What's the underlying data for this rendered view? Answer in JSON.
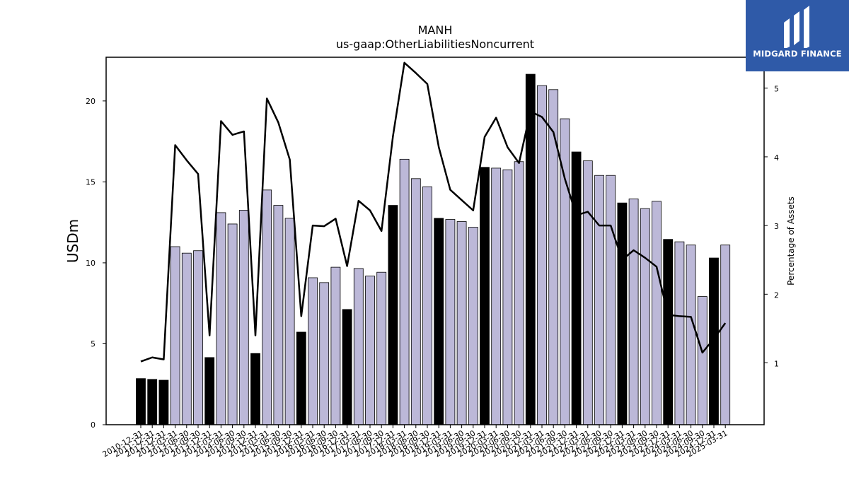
{
  "chart_data": {
    "type": "bar",
    "title": "MANH",
    "subtitle": "us-gaap:OtherLiabilitiesNoncurrent",
    "ylabel": "USDm",
    "ylabel_right": "Percentage of Assets",
    "ylim": [
      0,
      22.7
    ],
    "ylim_right": [
      0.1,
      5.45
    ],
    "yticks": [
      0,
      5,
      10,
      15,
      20
    ],
    "yticks_right": [
      1,
      2,
      3,
      4,
      5
    ],
    "bar_colors": {
      "annual": "#000000",
      "quarter": "#bcb8d8"
    },
    "line_color": "#000000",
    "categories": [
      "2010-12-31",
      "2011-12-31",
      "2012-12-31",
      "2013-03-31",
      "2013-06-30",
      "2013-09-30",
      "2013-12-31",
      "2014-03-31",
      "2014-06-30",
      "2014-09-30",
      "2014-12-31",
      "2015-03-31",
      "2015-06-30",
      "2015-09-30",
      "2015-12-31",
      "2016-03-31",
      "2016-06-30",
      "2016-09-30",
      "2016-12-31",
      "2017-03-31",
      "2017-06-30",
      "2017-09-30",
      "2017-12-31",
      "2018-03-31",
      "2018-06-30",
      "2018-09-30",
      "2018-12-31",
      "2019-03-31",
      "2019-06-30",
      "2019-09-30",
      "2019-12-31",
      "2020-03-31",
      "2020-06-30",
      "2020-09-30",
      "2020-12-31",
      "2021-03-31",
      "2021-06-30",
      "2021-09-30",
      "2021-12-31",
      "2022-03-31",
      "2022-06-30",
      "2022-09-30",
      "2022-12-31",
      "2023-03-31",
      "2023-06-30",
      "2023-09-30",
      "2023-12-31",
      "2024-03-31",
      "2024-06-30",
      "2024-09-30",
      "2024-12-31",
      "2025-03-31"
    ],
    "series": [
      {
        "type": "bar",
        "values": [
          2.85,
          2.8,
          2.75,
          11.0,
          10.6,
          10.75,
          4.15,
          13.1,
          12.4,
          13.25,
          4.4,
          14.5,
          13.55,
          12.75,
          5.72,
          9.08,
          8.78,
          9.73,
          7.12,
          9.65,
          9.18,
          9.42,
          13.55,
          16.4,
          15.2,
          14.7,
          12.75,
          12.68,
          12.55,
          12.2,
          15.9,
          15.85,
          15.75,
          16.25,
          21.65,
          20.95,
          20.7,
          18.9,
          16.85,
          16.3,
          15.4,
          15.4,
          13.7,
          13.95,
          13.35,
          13.8,
          11.45,
          11.3,
          11.1,
          7.92,
          10.3,
          11.1
        ],
        "annual": [
          true,
          true,
          true,
          false,
          false,
          false,
          true,
          false,
          false,
          false,
          true,
          false,
          false,
          false,
          true,
          false,
          false,
          false,
          true,
          false,
          false,
          false,
          true,
          false,
          false,
          false,
          true,
          false,
          false,
          false,
          true,
          false,
          false,
          false,
          true,
          false,
          false,
          false,
          true,
          false,
          false,
          false,
          true,
          false,
          false,
          false,
          true,
          false,
          false,
          false,
          true,
          false
        ]
      },
      {
        "type": "line",
        "axis": "right",
        "values": [
          1.02,
          1.08,
          1.05,
          4.17,
          3.95,
          3.75,
          1.4,
          4.52,
          4.32,
          4.37,
          1.4,
          4.85,
          4.5,
          3.96,
          1.68,
          3.0,
          2.99,
          3.1,
          2.41,
          3.36,
          3.22,
          2.92,
          4.3,
          5.37,
          5.22,
          5.06,
          4.14,
          3.52,
          3.37,
          3.22,
          4.29,
          4.57,
          4.14,
          3.91,
          4.66,
          4.58,
          4.36,
          3.68,
          3.15,
          3.2,
          3.0,
          3.0,
          2.5,
          2.64,
          2.53,
          2.4,
          1.7,
          1.68,
          1.67,
          1.15,
          1.35,
          1.58
        ]
      }
    ]
  },
  "logo": {
    "text": "MIDGARD FINANCE",
    "icon": "midgard-logo-icon"
  }
}
